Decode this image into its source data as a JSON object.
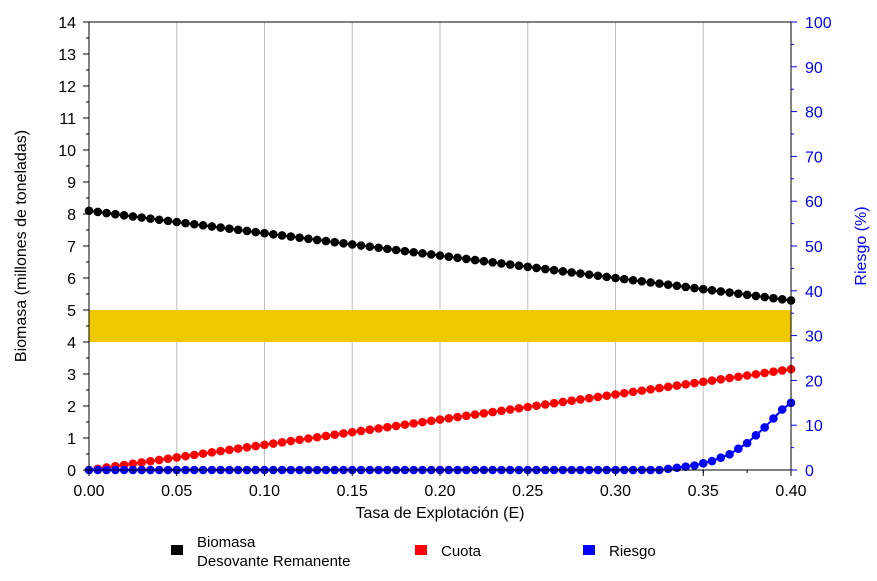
{
  "chart_data": {
    "type": "line",
    "xlabel": "Tasa de Explotación (E)",
    "ylabel_left": "Biomasa (millones de toneladas)",
    "ylabel_right": "Riesgo (%)",
    "xlim": [
      0,
      0.4
    ],
    "ylim_left": [
      0,
      14
    ],
    "ylim_right": [
      0,
      100
    ],
    "x_ticks": [
      "0.00",
      "0.05",
      "0.10",
      "0.15",
      "0.20",
      "0.25",
      "0.30",
      "0.35",
      "0.40"
    ],
    "y_left_ticks": [
      "0",
      "1",
      "2",
      "3",
      "4",
      "5",
      "6",
      "7",
      "8",
      "9",
      "10",
      "11",
      "12",
      "13",
      "14"
    ],
    "y_right_ticks": [
      "0",
      "10",
      "20",
      "30",
      "40",
      "50",
      "60",
      "70",
      "80",
      "90",
      "100"
    ],
    "grid": "vertical",
    "band": {
      "from": 4,
      "to": 5,
      "color": "#F0C800"
    },
    "x": [
      0,
      0.4
    ],
    "step": 0.005,
    "series": [
      {
        "name": "Biomasa Desovante Remanente",
        "axis": "left",
        "color": "#000000",
        "start": 8.1,
        "end": 5.3
      },
      {
        "name": "Cuota",
        "axis": "left",
        "color": "#FF0000",
        "start": 0.0,
        "end": 3.15
      },
      {
        "name": "Riesgo",
        "axis": "right",
        "color": "#0000FF",
        "points": [
          [
            0,
            0
          ],
          [
            0.325,
            0
          ],
          [
            0.335,
            0.5
          ],
          [
            0.345,
            1
          ],
          [
            0.355,
            2
          ],
          [
            0.365,
            3.5
          ],
          [
            0.375,
            6
          ],
          [
            0.385,
            9.5
          ],
          [
            0.395,
            13.5
          ],
          [
            0.4,
            15
          ]
        ]
      }
    ],
    "legend": {
      "placement": "bottom",
      "items": [
        {
          "label_lines": [
            "Biomasa",
            "Desovante Remanente"
          ],
          "color": "#000000"
        },
        {
          "label_lines": [
            "Cuota"
          ],
          "color": "#FF0000"
        },
        {
          "label_lines": [
            "Riesgo"
          ],
          "color": "#0000FF"
        }
      ]
    },
    "colors": {
      "left_axis": "#000000",
      "right_axis": "#0000FF",
      "grid": "#BEBEBE"
    }
  }
}
